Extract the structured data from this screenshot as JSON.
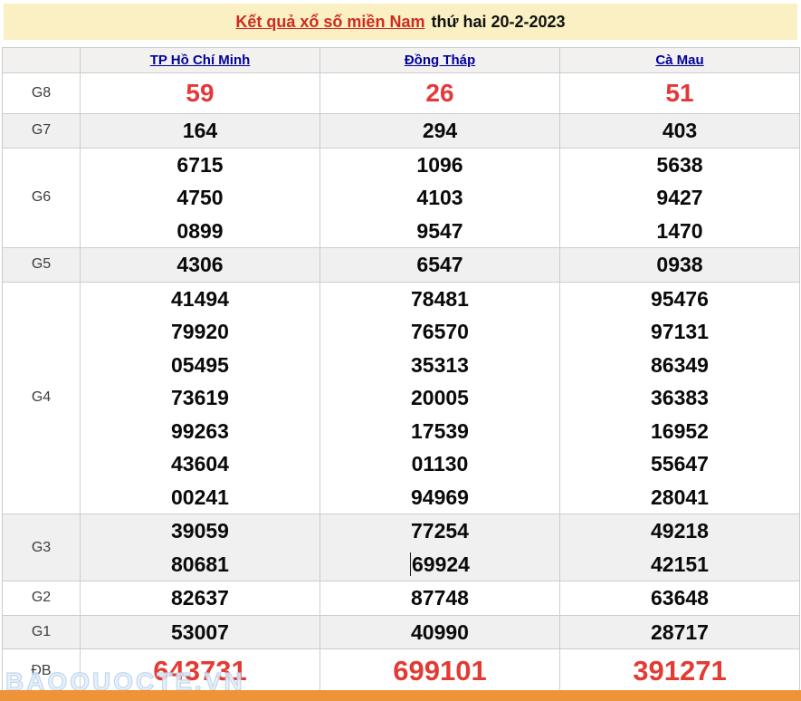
{
  "title": {
    "link_text": "Kết quả xổ số miền Nam",
    "date_text": "thứ hai 20-2-2023"
  },
  "table": {
    "columns": [
      "TP Hồ Chí Minh",
      "Đồng Tháp",
      "Cà Mau"
    ],
    "rows": [
      {
        "label": "G8",
        "values": [
          [
            "59"
          ],
          [
            "26"
          ],
          [
            "51"
          ]
        ]
      },
      {
        "label": "G7",
        "values": [
          [
            "164"
          ],
          [
            "294"
          ],
          [
            "403"
          ]
        ]
      },
      {
        "label": "G6",
        "values": [
          [
            "6715",
            "4750",
            "0899"
          ],
          [
            "1096",
            "4103",
            "9547"
          ],
          [
            "5638",
            "9427",
            "1470"
          ]
        ]
      },
      {
        "label": "G5",
        "values": [
          [
            "4306"
          ],
          [
            "6547"
          ],
          [
            "0938"
          ]
        ]
      },
      {
        "label": "G4",
        "values": [
          [
            "41494",
            "79920",
            "05495",
            "73619",
            "99263",
            "43604",
            "00241"
          ],
          [
            "78481",
            "76570",
            "35313",
            "20005",
            "17539",
            "01130",
            "94969"
          ],
          [
            "95476",
            "97131",
            "86349",
            "36383",
            "16952",
            "55647",
            "28041"
          ]
        ]
      },
      {
        "label": "G3",
        "values": [
          [
            "39059",
            "80681"
          ],
          [
            "77254",
            "69924"
          ],
          [
            "49218",
            "42151"
          ]
        ]
      },
      {
        "label": "G2",
        "values": [
          [
            "82637"
          ],
          [
            "87748"
          ],
          [
            "63648"
          ]
        ]
      },
      {
        "label": "G1",
        "values": [
          [
            "53007"
          ],
          [
            "40990"
          ],
          [
            "28717"
          ]
        ]
      },
      {
        "label": "ĐB",
        "values": [
          [
            "643731"
          ],
          [
            "699101"
          ],
          [
            "391271"
          ]
        ]
      }
    ]
  },
  "watermark": "BAOQUOCTE.VN",
  "colors": {
    "banner_bg": "#faf0c3",
    "title_link_red": "#ce2b20",
    "column_link_navy": "#00009b",
    "prize_red": "#e4383b",
    "stripe_gray": "#f0f0f0",
    "border_gray": "#cccccc",
    "bottom_bar_orange": "#ef9339"
  }
}
